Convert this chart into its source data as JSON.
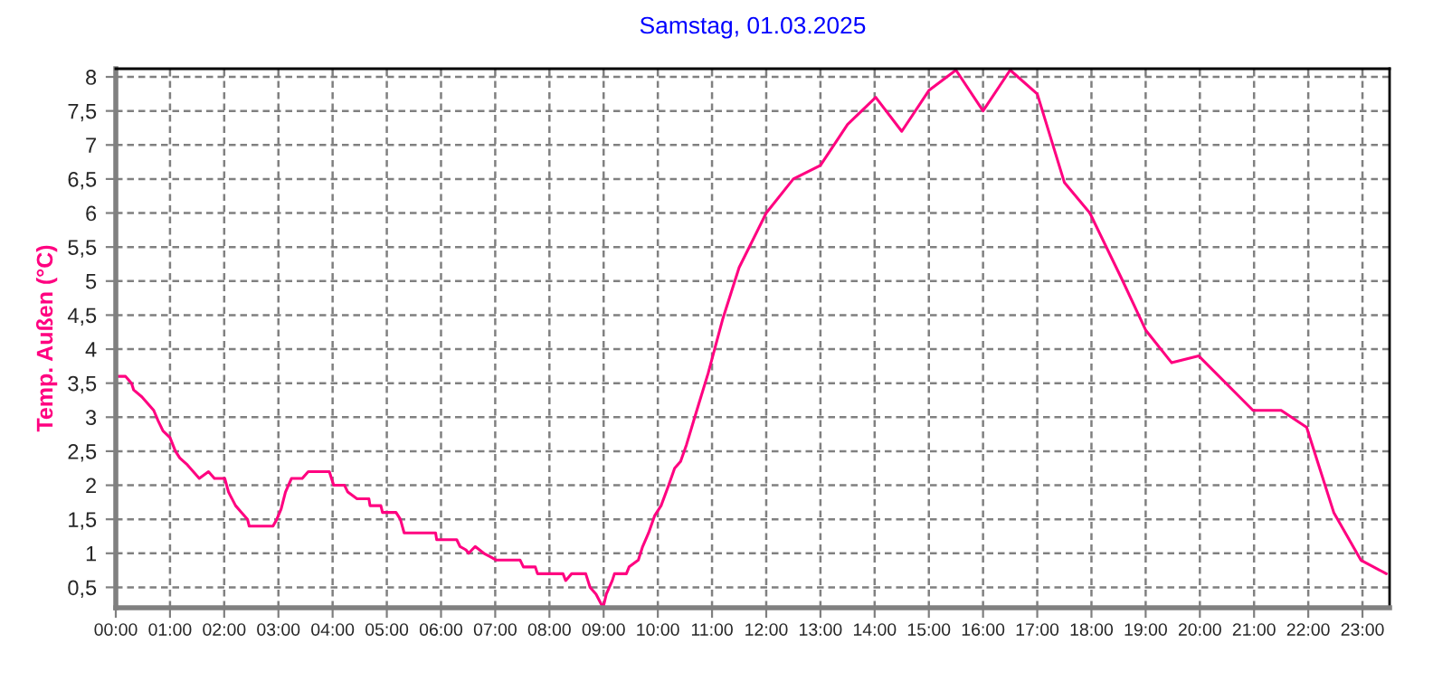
{
  "chart_data": {
    "type": "line",
    "title": "Samstag, 01.03.2025",
    "ylabel": "Temp. Außen (°C)",
    "xlim": [
      0,
      23.5
    ],
    "ylim": [
      0.2,
      8.12
    ],
    "xticks": [
      {
        "value": 0,
        "label": "00:00"
      },
      {
        "value": 1,
        "label": "01:00"
      },
      {
        "value": 2,
        "label": "02:00"
      },
      {
        "value": 3,
        "label": "03:00"
      },
      {
        "value": 4,
        "label": "04:00"
      },
      {
        "value": 5,
        "label": "05:00"
      },
      {
        "value": 6,
        "label": "06:00"
      },
      {
        "value": 7,
        "label": "07:00"
      },
      {
        "value": 8,
        "label": "08:00"
      },
      {
        "value": 9,
        "label": "09:00"
      },
      {
        "value": 10,
        "label": "10:00"
      },
      {
        "value": 11,
        "label": "11:00"
      },
      {
        "value": 12,
        "label": "12:00"
      },
      {
        "value": 13,
        "label": "13:00"
      },
      {
        "value": 14,
        "label": "14:00"
      },
      {
        "value": 15,
        "label": "15:00"
      },
      {
        "value": 16,
        "label": "16:00"
      },
      {
        "value": 17,
        "label": "17:00"
      },
      {
        "value": 18,
        "label": "18:00"
      },
      {
        "value": 19,
        "label": "19:00"
      },
      {
        "value": 20,
        "label": "20:00"
      },
      {
        "value": 21,
        "label": "21:00"
      },
      {
        "value": 22,
        "label": "22:00"
      },
      {
        "value": 23,
        "label": "23:00"
      }
    ],
    "yticks": [
      {
        "value": 0.5,
        "label": "0,5"
      },
      1,
      {
        "value": 1.5,
        "label": "1,5"
      },
      2,
      {
        "value": 2.5,
        "label": "2,5"
      },
      3,
      {
        "value": 3.5,
        "label": "3,5"
      },
      4,
      {
        "value": 4.5,
        "label": "4,5"
      },
      5,
      {
        "value": 5.5,
        "label": "5,5"
      },
      6,
      {
        "value": 6.5,
        "label": "6,5"
      },
      7,
      {
        "value": 7.5,
        "label": "7,5"
      },
      8
    ],
    "grid": true,
    "marker": "none",
    "line_style": "solid",
    "series": [
      {
        "color": "#ff0080",
        "x": [
          0.0,
          0.18,
          0.29,
          0.33,
          0.48,
          0.59,
          0.7,
          0.78,
          0.87,
          1.0,
          1.1,
          1.18,
          1.32,
          1.43,
          1.54,
          1.71,
          1.82,
          2.01,
          2.08,
          2.21,
          2.32,
          2.43,
          2.46,
          2.9,
          2.97,
          3.05,
          3.13,
          3.24,
          3.44,
          3.55,
          3.94,
          4.02,
          4.22,
          4.28,
          4.45,
          4.67,
          4.69,
          4.89,
          4.92,
          5.17,
          5.25,
          5.32,
          5.9,
          5.92,
          6.29,
          6.35,
          6.46,
          6.51,
          6.63,
          6.79,
          6.91,
          7.02,
          7.46,
          7.52,
          7.74,
          7.78,
          8.25,
          8.3,
          8.41,
          8.67,
          8.75,
          8.86,
          8.99,
          9.05,
          9.16,
          9.2,
          9.42,
          9.47,
          9.64,
          9.72,
          9.83,
          9.94,
          10.06,
          10.2,
          10.31,
          10.42,
          10.53,
          10.7,
          10.93,
          11.2,
          11.5,
          12.0,
          12.5,
          13.0,
          13.5,
          14.02,
          14.5,
          15.0,
          15.5,
          16.0,
          16.5,
          17.0,
          17.5,
          17.97,
          18.56,
          19.0,
          19.48,
          19.98,
          20.98,
          21.5,
          21.97,
          22.47,
          22.97,
          23.44
        ],
        "values": [
          3.6,
          3.6,
          3.5,
          3.4,
          3.3,
          3.2,
          3.1,
          2.95,
          2.8,
          2.7,
          2.5,
          2.4,
          2.3,
          2.2,
          2.1,
          2.2,
          2.1,
          2.1,
          1.9,
          1.7,
          1.6,
          1.5,
          1.4,
          1.4,
          1.5,
          1.65,
          1.9,
          2.1,
          2.1,
          2.2,
          2.2,
          2.0,
          2.0,
          1.9,
          1.8,
          1.8,
          1.7,
          1.7,
          1.6,
          1.6,
          1.5,
          1.3,
          1.3,
          1.2,
          1.2,
          1.1,
          1.05,
          1.0,
          1.1,
          1.0,
          0.95,
          0.9,
          0.9,
          0.8,
          0.8,
          0.7,
          0.7,
          0.6,
          0.7,
          0.7,
          0.5,
          0.4,
          0.2,
          0.4,
          0.6,
          0.7,
          0.7,
          0.8,
          0.9,
          1.1,
          1.3,
          1.55,
          1.7,
          2.0,
          2.25,
          2.35,
          2.6,
          3.05,
          3.65,
          4.45,
          5.2,
          6.0,
          6.5,
          6.7,
          7.3,
          7.7,
          7.2,
          7.8,
          8.1,
          7.5,
          8.1,
          7.75,
          6.45,
          6.0,
          5.03,
          4.28,
          3.8,
          3.9,
          3.1,
          3.1,
          2.85,
          1.6,
          0.9,
          0.7
        ]
      }
    ]
  }
}
